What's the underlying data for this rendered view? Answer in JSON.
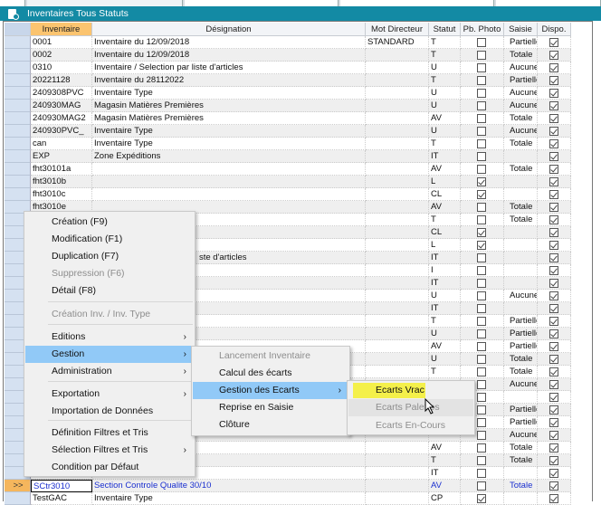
{
  "window": {
    "title": "Inventaires Tous Statuts",
    "title_icon": "document-icon",
    "accent": "#138aa4"
  },
  "grid": {
    "columns": [
      "Inventaire",
      "Désignation",
      "Mot Directeur",
      "Statut",
      "Pb. Photo",
      "Saisie",
      "Dispo."
    ],
    "sorted_column": "Inventaire",
    "current_row_marker": ">>",
    "rows": [
      [
        "0001",
        "Inventaire du 12/09/2018",
        "STANDARD",
        "T",
        false,
        "Partielle",
        true
      ],
      [
        "0002",
        "Inventaire du 12/09/2018",
        "",
        "T",
        false,
        "Totale",
        true
      ],
      [
        "0310",
        "Inventaire / Selection par liste d'articles",
        "",
        "U",
        false,
        "Aucune",
        true
      ],
      [
        "20221128",
        "Inventaire du 28112022",
        "",
        "T",
        false,
        "Partielle",
        true
      ],
      [
        "2409308PVC",
        "Inventaire Type",
        "",
        "U",
        false,
        "Aucune",
        true
      ],
      [
        "240930MAG",
        "Magasin Matières Premières",
        "",
        "U",
        false,
        "Aucune",
        true
      ],
      [
        "240930MAG2",
        "Magasin Matières Premières",
        "",
        "AV",
        false,
        "Totale",
        true
      ],
      [
        "240930PVC_",
        "Inventaire Type",
        "",
        "U",
        false,
        "Aucune",
        true
      ],
      [
        "can",
        "Inventaire Type",
        "",
        "T",
        false,
        "Totale",
        true
      ],
      [
        "EXP",
        "Zone Expéditions",
        "",
        "IT",
        false,
        "",
        true
      ],
      [
        "fht30101a",
        "",
        "",
        "AV",
        false,
        "Totale",
        true
      ],
      [
        "fht3010b",
        "",
        "",
        "L",
        true,
        "",
        true
      ],
      [
        "fht3010c",
        "",
        "",
        "CL",
        true,
        "",
        true
      ],
      [
        "fht3010e",
        "",
        "",
        "AV",
        false,
        "Totale",
        true
      ],
      [
        "",
        "",
        "",
        "T",
        false,
        "Totale",
        true
      ],
      [
        "",
        "",
        "",
        "CL",
        true,
        "",
        true
      ],
      [
        "",
        "",
        "",
        "L",
        true,
        "",
        true
      ],
      [
        "",
        "ste d'articles",
        "",
        "IT",
        false,
        "",
        true
      ],
      [
        "",
        "",
        "",
        "I",
        false,
        "",
        true
      ],
      [
        "",
        "",
        "",
        "IT",
        false,
        "",
        true
      ],
      [
        "",
        "",
        "",
        "U",
        false,
        "Aucune",
        true
      ],
      [
        "",
        "",
        "",
        "IT",
        false,
        "",
        true
      ],
      [
        "",
        "",
        "",
        "T",
        false,
        "Partielle",
        true
      ],
      [
        "",
        "",
        "",
        "U",
        false,
        "Partielle",
        true
      ],
      [
        "",
        "",
        "",
        "AV",
        false,
        "Partielle",
        true
      ],
      [
        "",
        "",
        "",
        "U",
        false,
        "Totale",
        true
      ],
      [
        "",
        "",
        "",
        "T",
        false,
        "Totale",
        true
      ],
      [
        "",
        "",
        "",
        "",
        false,
        "Aucune",
        true
      ],
      [
        "",
        "",
        "",
        "",
        false,
        "",
        true
      ],
      [
        "",
        "",
        "",
        "",
        false,
        "Partielle",
        true
      ],
      [
        "",
        "",
        "",
        "",
        false,
        "Partielle",
        true
      ],
      [
        "",
        "",
        "",
        "",
        false,
        "Aucune",
        true
      ],
      [
        "",
        "",
        "",
        "AV",
        false,
        "Totale",
        true
      ],
      [
        "",
        "",
        "",
        "T",
        false,
        "Totale",
        true
      ],
      [
        "",
        "",
        "",
        "IT",
        false,
        "",
        true
      ],
      [
        "SCtr3010",
        "Section Controle Qualite 30/10",
        "",
        "AV",
        false,
        "Totale",
        true
      ],
      [
        "TestGAC",
        "Inventaire Type",
        "",
        "CP",
        true,
        "",
        true
      ]
    ],
    "selected_row": 35
  },
  "context_menu": {
    "items": [
      {
        "label": "Création (F9)",
        "enabled": true
      },
      {
        "label": "Modification (F1)",
        "enabled": true
      },
      {
        "label": "Duplication (F7)",
        "enabled": true
      },
      {
        "label": "Suppression (F6)",
        "enabled": false
      },
      {
        "label": "Détail (F8)",
        "enabled": true
      },
      {
        "label": "Création Inv. / Inv. Type",
        "enabled": false
      },
      {
        "label": "Editions",
        "enabled": true,
        "submenu": true
      },
      {
        "label": "Gestion",
        "enabled": true,
        "submenu": true,
        "highlighted": true
      },
      {
        "label": "Administration",
        "enabled": true,
        "submenu": true
      },
      {
        "label": "Exportation",
        "enabled": true,
        "submenu": true
      },
      {
        "label": "Importation de Données",
        "enabled": true
      },
      {
        "label": "Définition Filtres et Tris",
        "enabled": true
      },
      {
        "label": "Sélection Filtres et Tris",
        "enabled": true,
        "submenu": true
      },
      {
        "label": "Condition par Défaut",
        "enabled": true
      }
    ],
    "gestion_submenu": [
      {
        "label": "Lancement Inventaire",
        "enabled": false
      },
      {
        "label": "Calcul des écarts",
        "enabled": true
      },
      {
        "label": "Gestion des Ecarts",
        "enabled": true,
        "submenu": true,
        "highlighted": true
      },
      {
        "label": "Reprise en Saisie",
        "enabled": true
      },
      {
        "label": "Clôture",
        "enabled": true
      }
    ],
    "ecarts_submenu": [
      {
        "label": "Ecarts Vrac",
        "enabled": true,
        "marked": "#f4f04a"
      },
      {
        "label": "Ecarts Palettes",
        "enabled": false,
        "hovered": true
      },
      {
        "label": "Ecarts En-Cours",
        "enabled": false
      }
    ],
    "submenu_arrow": "›"
  }
}
